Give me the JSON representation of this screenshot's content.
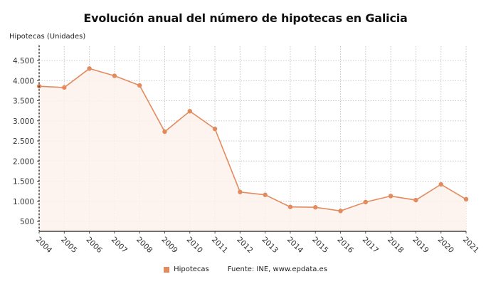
{
  "chart_data": {
    "type": "line",
    "title": "Evolución anual del número de hipotecas en Galicia",
    "xlabel": "",
    "ylabel": "Hipotecas (Unidades)",
    "categories": [
      "2004",
      "2005",
      "2006",
      "2007",
      "2008",
      "2009",
      "2010",
      "2011",
      "2012",
      "2013",
      "2014",
      "2015",
      "2016",
      "2017",
      "2018",
      "2019",
      "2020",
      "2021"
    ],
    "series": [
      {
        "name": "Hipotecas",
        "color": "#e28b5e",
        "values": [
          3860,
          3830,
          4300,
          4120,
          3880,
          2730,
          3240,
          2800,
          1230,
          1160,
          860,
          850,
          760,
          980,
          1130,
          1030,
          1420,
          1050
        ]
      }
    ],
    "ylim": [
      250,
      4800
    ],
    "yticks": [
      500,
      1000,
      1500,
      2000,
      2500,
      3000,
      3500,
      4000,
      4500
    ],
    "ytick_labels": [
      "500",
      "1.000",
      "1.500",
      "2.000",
      "2.500",
      "3.000",
      "3.500",
      "4.000",
      "4.500"
    ],
    "grid": true,
    "area_fill": "#fdf1ec",
    "legend_position": "bottom"
  },
  "header": {
    "title": "Evolución anual del número de hipotecas en Galicia",
    "y_axis_label": "Hipotecas (Unidades)"
  },
  "legend": {
    "series_label": "Hipotecas",
    "source": "Fuente: INE, www.epdata.es"
  }
}
